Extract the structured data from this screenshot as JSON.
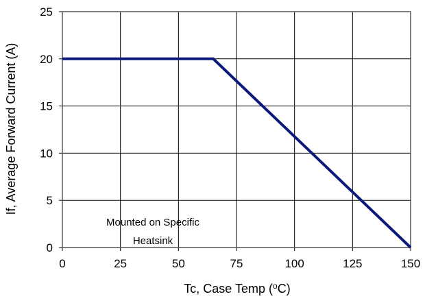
{
  "chart_data": {
    "type": "line",
    "title": "",
    "xlabel": "Tc, Case Temp (",
    "xlabel_sup": "o",
    "xlabel_suffix": "C)",
    "ylabel": "If, Average Forward Current (A)",
    "xlim": [
      0,
      150
    ],
    "ylim": [
      0,
      25
    ],
    "xticks": [
      "0",
      "25",
      "50",
      "75",
      "100",
      "125",
      "150"
    ],
    "yticks": [
      "0",
      "5",
      "10",
      "15",
      "20",
      "25"
    ],
    "grid": true,
    "legend": "none",
    "series": [
      {
        "x": [
          0,
          65,
          150
        ],
        "y": [
          20,
          20,
          0
        ],
        "color": "#0b1a7a"
      }
    ],
    "annotations": [
      "Mounted on Specific",
      "Heatsink"
    ]
  }
}
